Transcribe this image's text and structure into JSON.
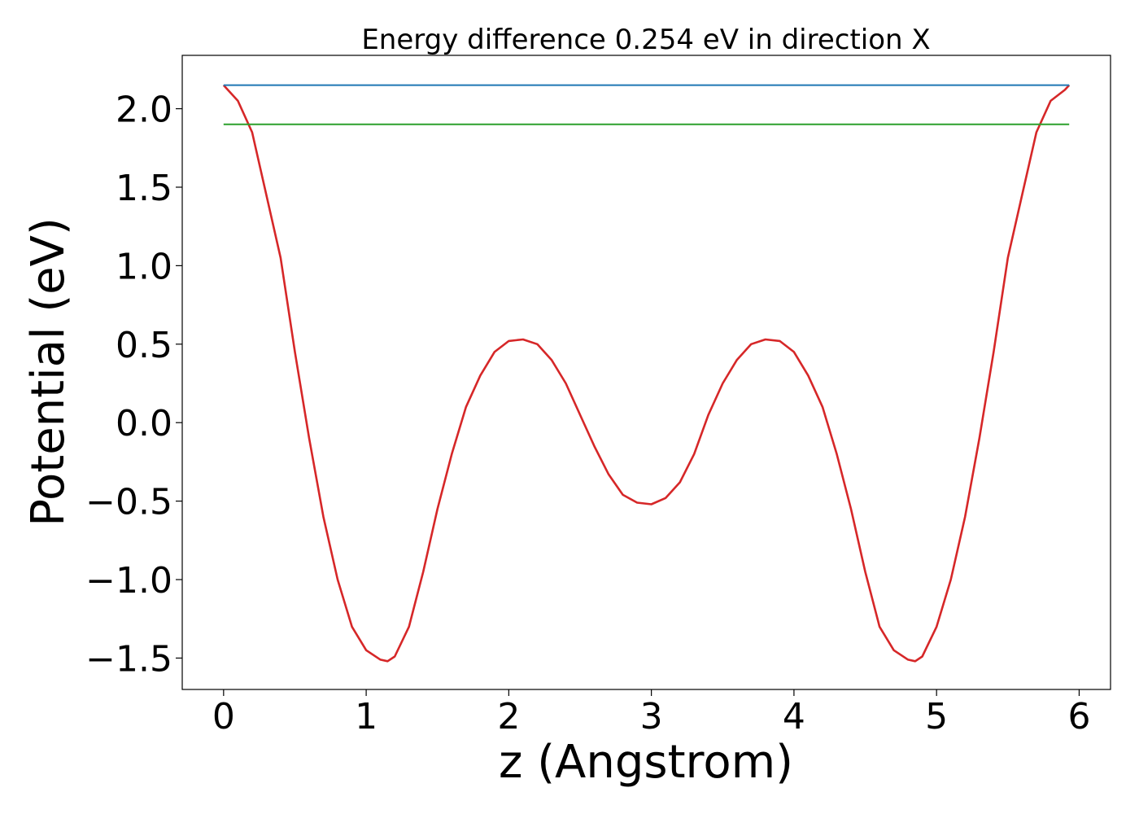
{
  "chart_data": {
    "type": "line",
    "title": "Energy difference 0.254 eV in direction X",
    "xlabel": "z (Angstrom)",
    "ylabel": "Potential (eV)",
    "xlim": [
      -0.29,
      6.22
    ],
    "ylim": [
      -1.7,
      2.34
    ],
    "xticks": [
      0,
      1,
      2,
      3,
      4,
      5,
      6
    ],
    "xtick_labels": [
      "0",
      "1",
      "2",
      "3",
      "4",
      "5",
      "6"
    ],
    "yticks": [
      -1.5,
      -1.0,
      -0.5,
      0.0,
      0.5,
      1.0,
      1.5,
      2.0
    ],
    "ytick_labels": [
      "−1.5",
      "−1.0",
      "−0.5",
      "0.0",
      "0.5",
      "1.0",
      "1.5",
      "2.0"
    ],
    "grid": false,
    "series": [
      {
        "color": "#d62728",
        "x": [
          0.0,
          0.1,
          0.2,
          0.3,
          0.4,
          0.5,
          0.6,
          0.7,
          0.8,
          0.9,
          1.0,
          1.1,
          1.15,
          1.2,
          1.3,
          1.4,
          1.5,
          1.6,
          1.7,
          1.8,
          1.9,
          2.0,
          2.1,
          2.2,
          2.3,
          2.4,
          2.5,
          2.6,
          2.7,
          2.8,
          2.9,
          3.0,
          3.1,
          3.2,
          3.3,
          3.4,
          3.5,
          3.6,
          3.7,
          3.8,
          3.9,
          4.0,
          4.1,
          4.2,
          4.3,
          4.4,
          4.5,
          4.6,
          4.7,
          4.8,
          4.85,
          4.9,
          5.0,
          5.1,
          5.2,
          5.3,
          5.4,
          5.5,
          5.6,
          5.7,
          5.8,
          5.9,
          5.93
        ],
        "y": [
          2.15,
          2.05,
          1.85,
          1.45,
          1.05,
          0.45,
          -0.1,
          -0.6,
          -1.0,
          -1.3,
          -1.45,
          -1.51,
          -1.52,
          -1.49,
          -1.3,
          -0.95,
          -0.55,
          -0.2,
          0.1,
          0.3,
          0.45,
          0.52,
          0.53,
          0.5,
          0.4,
          0.25,
          0.05,
          -0.15,
          -0.33,
          -0.46,
          -0.51,
          -0.52,
          -0.48,
          -0.38,
          -0.2,
          0.05,
          0.25,
          0.4,
          0.5,
          0.53,
          0.52,
          0.45,
          0.3,
          0.1,
          -0.2,
          -0.55,
          -0.95,
          -1.3,
          -1.45,
          -1.51,
          -1.52,
          -1.49,
          -1.3,
          -1.0,
          -0.6,
          -0.1,
          0.45,
          1.05,
          1.45,
          1.85,
          2.05,
          2.12,
          2.15
        ]
      },
      {
        "color": "#1f77b4",
        "x": [
          0.0,
          5.93
        ],
        "y": [
          2.15,
          2.15
        ]
      },
      {
        "color": "#2ca02c",
        "x": [
          0.0,
          5.93
        ],
        "y": [
          1.9,
          1.9
        ]
      }
    ]
  }
}
